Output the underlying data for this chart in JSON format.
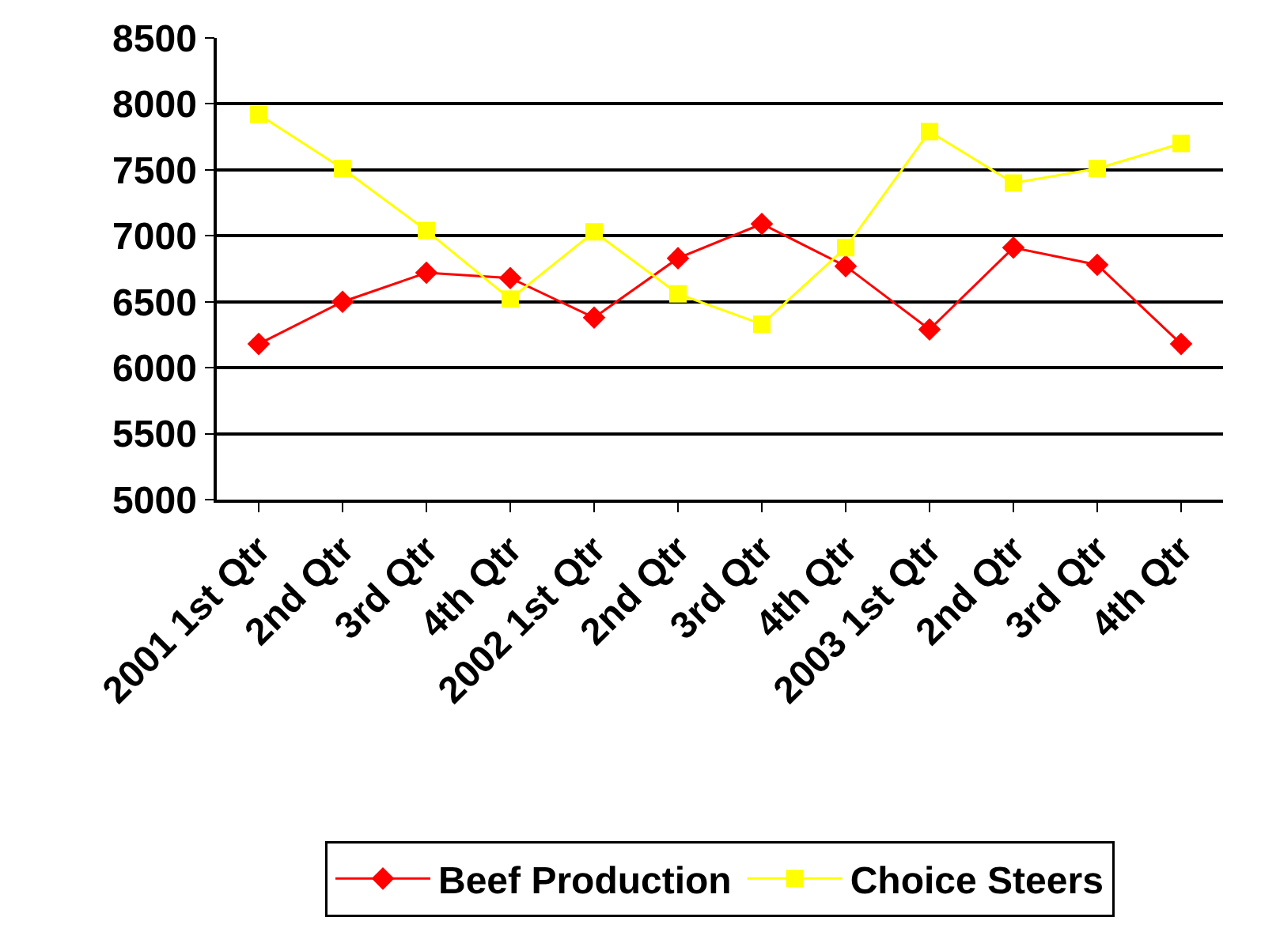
{
  "chart_data": {
    "type": "line",
    "categories": [
      "2001 1st Qtr",
      "2nd Qtr",
      "3rd Qtr",
      "4th Qtr",
      "2002 1st Qtr",
      "2nd Qtr",
      "3rd Qtr",
      "4th Qtr",
      "2003 1st Qtr",
      "2nd Qtr",
      "3rd Qtr",
      "4th Qtr"
    ],
    "series": [
      {
        "name": "Beef Production",
        "color": "#ff0000",
        "marker": "diamond",
        "values": [
          6180,
          6500,
          6720,
          6680,
          6380,
          6830,
          7090,
          6770,
          6290,
          6910,
          6780,
          6180
        ]
      },
      {
        "name": "Choice Steers",
        "color": "#ffff00",
        "marker": "square",
        "values": [
          7920,
          7510,
          7040,
          6520,
          7030,
          6560,
          6330,
          6910,
          7790,
          7400,
          7510,
          7700
        ]
      }
    ],
    "ylim": [
      5000,
      8500
    ],
    "yticks": [
      5000,
      5500,
      6000,
      6500,
      7000,
      7500,
      8000,
      8500
    ],
    "grid": "y",
    "legend": "bottom"
  }
}
